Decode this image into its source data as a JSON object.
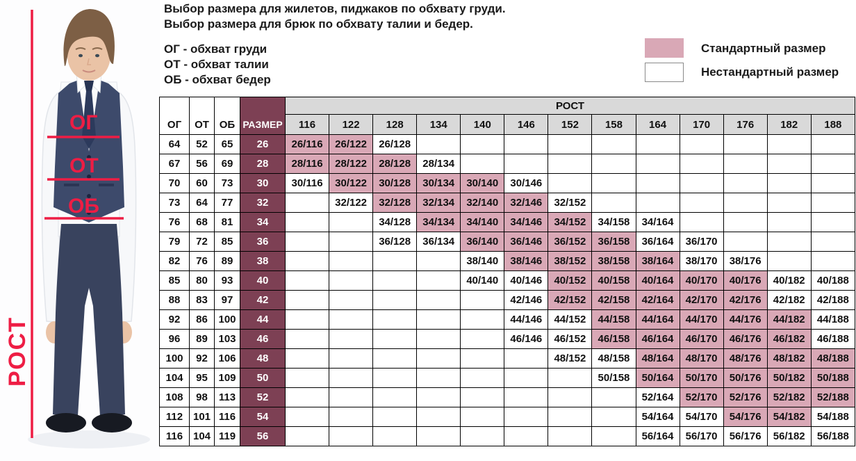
{
  "header": {
    "title_line1": "Выбор размера для жилетов, пиджаков по обхвату груди.",
    "title_line2": "Выбор размера для брюк по обхвату талии и бедер.",
    "abbr_line1": "ОГ - обхват груди",
    "abbr_line2": "ОТ - обхват талии",
    "abbr_line3": "ОБ - обхват бедер"
  },
  "legend": {
    "standard_label": "Стандартный размер",
    "nonstandard_label": "Нестандартный размер"
  },
  "photo_annotations": {
    "chest": "ОГ",
    "waist": "ОТ",
    "hips": "ОБ",
    "height_label": "РОСТ"
  },
  "colors": {
    "standard_pink": "#d9a8b6",
    "size_maroon": "#7d4054",
    "header_grey": "#d9d9d9",
    "annotation_red": "#ee1d44"
  },
  "chart_data": {
    "type": "table",
    "measure_headers": [
      "ОГ",
      "ОТ",
      "ОБ"
    ],
    "size_header": "РАЗМЕР",
    "rost_header": "РОСТ",
    "heights": [
      "116",
      "122",
      "128",
      "134",
      "140",
      "146",
      "152",
      "158",
      "164",
      "170",
      "176",
      "182",
      "188"
    ],
    "legend": {
      "standard": "pink",
      "nonstandard": "white"
    },
    "rows": [
      {
        "og": "64",
        "ot": "52",
        "ob": "65",
        "size": "26",
        "cells": [
          {
            "h": "116",
            "label": "26/116",
            "std": true
          },
          {
            "h": "122",
            "label": "26/122",
            "std": true
          },
          {
            "h": "128",
            "label": "26/128",
            "std": false
          }
        ]
      },
      {
        "og": "67",
        "ot": "56",
        "ob": "69",
        "size": "28",
        "cells": [
          {
            "h": "116",
            "label": "28/116",
            "std": true
          },
          {
            "h": "122",
            "label": "28/122",
            "std": true
          },
          {
            "h": "128",
            "label": "28/128",
            "std": true
          },
          {
            "h": "134",
            "label": "28/134",
            "std": false
          }
        ]
      },
      {
        "og": "70",
        "ot": "60",
        "ob": "73",
        "size": "30",
        "cells": [
          {
            "h": "116",
            "label": "30/116",
            "std": false
          },
          {
            "h": "122",
            "label": "30/122",
            "std": true
          },
          {
            "h": "128",
            "label": "30/128",
            "std": true
          },
          {
            "h": "134",
            "label": "30/134",
            "std": true
          },
          {
            "h": "140",
            "label": "30/140",
            "std": true
          },
          {
            "h": "146",
            "label": "30/146",
            "std": false
          }
        ]
      },
      {
        "og": "73",
        "ot": "64",
        "ob": "77",
        "size": "32",
        "cells": [
          {
            "h": "122",
            "label": "32/122",
            "std": false
          },
          {
            "h": "128",
            "label": "32/128",
            "std": true
          },
          {
            "h": "134",
            "label": "32/134",
            "std": true
          },
          {
            "h": "140",
            "label": "32/140",
            "std": true
          },
          {
            "h": "146",
            "label": "32/146",
            "std": true
          },
          {
            "h": "152",
            "label": "32/152",
            "std": false
          }
        ]
      },
      {
        "og": "76",
        "ot": "68",
        "ob": "81",
        "size": "34",
        "cells": [
          {
            "h": "128",
            "label": "34/128",
            "std": false
          },
          {
            "h": "134",
            "label": "34/134",
            "std": true
          },
          {
            "h": "140",
            "label": "34/140",
            "std": true
          },
          {
            "h": "146",
            "label": "34/146",
            "std": true
          },
          {
            "h": "152",
            "label": "34/152",
            "std": true
          },
          {
            "h": "158",
            "label": "34/158",
            "std": false
          },
          {
            "h": "164",
            "label": "34/164",
            "std": false
          }
        ]
      },
      {
        "og": "79",
        "ot": "72",
        "ob": "85",
        "size": "36",
        "cells": [
          {
            "h": "128",
            "label": "36/128",
            "std": false
          },
          {
            "h": "134",
            "label": "36/134",
            "std": false
          },
          {
            "h": "140",
            "label": "36/140",
            "std": true
          },
          {
            "h": "146",
            "label": "36/146",
            "std": true
          },
          {
            "h": "152",
            "label": "36/152",
            "std": true
          },
          {
            "h": "158",
            "label": "36/158",
            "std": true
          },
          {
            "h": "164",
            "label": "36/164",
            "std": false
          },
          {
            "h": "170",
            "label": "36/170",
            "std": false
          }
        ]
      },
      {
        "og": "82",
        "ot": "76",
        "ob": "89",
        "size": "38",
        "cells": [
          {
            "h": "140",
            "label": "38/140",
            "std": false
          },
          {
            "h": "146",
            "label": "38/146",
            "std": true
          },
          {
            "h": "152",
            "label": "38/152",
            "std": true
          },
          {
            "h": "158",
            "label": "38/158",
            "std": true
          },
          {
            "h": "164",
            "label": "38/164",
            "std": true
          },
          {
            "h": "170",
            "label": "38/170",
            "std": false
          },
          {
            "h": "176",
            "label": "38/176",
            "std": false
          }
        ]
      },
      {
        "og": "85",
        "ot": "80",
        "ob": "93",
        "size": "40",
        "cells": [
          {
            "h": "140",
            "label": "40/140",
            "std": false
          },
          {
            "h": "146",
            "label": "40/146",
            "std": false
          },
          {
            "h": "152",
            "label": "40/152",
            "std": true
          },
          {
            "h": "158",
            "label": "40/158",
            "std": true
          },
          {
            "h": "164",
            "label": "40/164",
            "std": true
          },
          {
            "h": "170",
            "label": "40/170",
            "std": true
          },
          {
            "h": "176",
            "label": "40/176",
            "std": true
          },
          {
            "h": "182",
            "label": "40/182",
            "std": false
          },
          {
            "h": "188",
            "label": "40/188",
            "std": false
          }
        ]
      },
      {
        "og": "88",
        "ot": "83",
        "ob": "97",
        "size": "42",
        "cells": [
          {
            "h": "146",
            "label": "42/146",
            "std": false
          },
          {
            "h": "152",
            "label": "42/152",
            "std": true
          },
          {
            "h": "158",
            "label": "42/158",
            "std": true
          },
          {
            "h": "164",
            "label": "42/164",
            "std": true
          },
          {
            "h": "170",
            "label": "42/170",
            "std": true
          },
          {
            "h": "176",
            "label": "42/176",
            "std": true
          },
          {
            "h": "182",
            "label": "42/182",
            "std": false
          },
          {
            "h": "188",
            "label": "42/188",
            "std": false
          }
        ]
      },
      {
        "og": "92",
        "ot": "86",
        "ob": "100",
        "size": "44",
        "cells": [
          {
            "h": "146",
            "label": "44/146",
            "std": false
          },
          {
            "h": "152",
            "label": "44/152",
            "std": false
          },
          {
            "h": "158",
            "label": "44/158",
            "std": true
          },
          {
            "h": "164",
            "label": "44/164",
            "std": true
          },
          {
            "h": "170",
            "label": "44/170",
            "std": true
          },
          {
            "h": "176",
            "label": "44/176",
            "std": true
          },
          {
            "h": "182",
            "label": "44/182",
            "std": true
          },
          {
            "h": "188",
            "label": "44/188",
            "std": false
          }
        ]
      },
      {
        "og": "96",
        "ot": "89",
        "ob": "103",
        "size": "46",
        "cells": [
          {
            "h": "146",
            "label": "46/146",
            "std": false
          },
          {
            "h": "152",
            "label": "46/152",
            "std": false
          },
          {
            "h": "158",
            "label": "46/158",
            "std": true
          },
          {
            "h": "164",
            "label": "46/164",
            "std": true
          },
          {
            "h": "170",
            "label": "46/170",
            "std": true
          },
          {
            "h": "176",
            "label": "46/176",
            "std": true
          },
          {
            "h": "182",
            "label": "46/182",
            "std": true
          },
          {
            "h": "188",
            "label": "46/188",
            "std": false
          }
        ]
      },
      {
        "og": "100",
        "ot": "92",
        "ob": "106",
        "size": "48",
        "cells": [
          {
            "h": "152",
            "label": "48/152",
            "std": false
          },
          {
            "h": "158",
            "label": "48/158",
            "std": false
          },
          {
            "h": "164",
            "label": "48/164",
            "std": true
          },
          {
            "h": "170",
            "label": "48/170",
            "std": true
          },
          {
            "h": "176",
            "label": "48/176",
            "std": true
          },
          {
            "h": "182",
            "label": "48/182",
            "std": true
          },
          {
            "h": "188",
            "label": "48/188",
            "std": true
          }
        ]
      },
      {
        "og": "104",
        "ot": "95",
        "ob": "109",
        "size": "50",
        "cells": [
          {
            "h": "158",
            "label": "50/158",
            "std": false
          },
          {
            "h": "164",
            "label": "50/164",
            "std": true
          },
          {
            "h": "170",
            "label": "50/170",
            "std": true
          },
          {
            "h": "176",
            "label": "50/176",
            "std": true
          },
          {
            "h": "182",
            "label": "50/182",
            "std": true
          },
          {
            "h": "188",
            "label": "50/188",
            "std": true
          }
        ]
      },
      {
        "og": "108",
        "ot": "98",
        "ob": "113",
        "size": "52",
        "cells": [
          {
            "h": "164",
            "label": "52/164",
            "std": false
          },
          {
            "h": "170",
            "label": "52/170",
            "std": true
          },
          {
            "h": "176",
            "label": "52/176",
            "std": true
          },
          {
            "h": "182",
            "label": "52/182",
            "std": true
          },
          {
            "h": "188",
            "label": "52/188",
            "std": true
          }
        ]
      },
      {
        "og": "112",
        "ot": "101",
        "ob": "116",
        "size": "54",
        "cells": [
          {
            "h": "164",
            "label": "54/164",
            "std": false
          },
          {
            "h": "170",
            "label": "54/170",
            "std": false
          },
          {
            "h": "176",
            "label": "54/176",
            "std": true
          },
          {
            "h": "182",
            "label": "54/182",
            "std": true
          },
          {
            "h": "188",
            "label": "54/188",
            "std": false
          }
        ]
      },
      {
        "og": "116",
        "ot": "104",
        "ob": "119",
        "size": "56",
        "cells": [
          {
            "h": "164",
            "label": "56/164",
            "std": false
          },
          {
            "h": "170",
            "label": "56/170",
            "std": false
          },
          {
            "h": "176",
            "label": "56/176",
            "std": false
          },
          {
            "h": "182",
            "label": "56/182",
            "std": false
          },
          {
            "h": "188",
            "label": "56/188",
            "std": false
          }
        ]
      }
    ]
  }
}
